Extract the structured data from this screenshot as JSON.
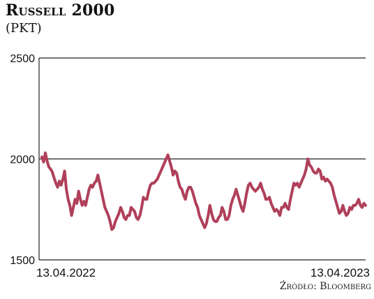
{
  "title": "Russell 2000",
  "unit": "(PKT)",
  "source": "Źródło: Bloomberg",
  "colors": {
    "line": "#b0405a",
    "grid": "#222222",
    "axis": "#222222"
  },
  "chart_data": {
    "type": "line",
    "title": "Russell 2000",
    "ylabel": "(PKT)",
    "ylim": [
      1500,
      2500
    ],
    "yticks": [
      1500,
      2000,
      2500
    ],
    "xtick_labels": [
      "13.04.2022",
      "13.04.2023"
    ],
    "grid": "horizontal",
    "x_range": [
      "2022-04-13",
      "2023-04-13"
    ],
    "series": [
      {
        "values": [
          2010,
          1985,
          2030,
          1990,
          1960,
          1950,
          1935,
          1905,
          1880,
          1860,
          1890,
          1870,
          1900,
          1940,
          1850,
          1800,
          1770,
          1720,
          1760,
          1800,
          1780,
          1840,
          1800,
          1770,
          1790,
          1770,
          1810,
          1850,
          1870,
          1860,
          1880,
          1890,
          1920,
          1880,
          1840,
          1800,
          1760,
          1740,
          1720,
          1690,
          1650,
          1660,
          1690,
          1710,
          1730,
          1760,
          1740,
          1710,
          1700,
          1720,
          1720,
          1760,
          1750,
          1740,
          1710,
          1700,
          1720,
          1760,
          1810,
          1800,
          1800,
          1840,
          1870,
          1880,
          1880,
          1890,
          1900,
          1920,
          1940,
          1960,
          1980,
          2000,
          2020,
          1990,
          1960,
          1920,
          1940,
          1930,
          1890,
          1860,
          1850,
          1820,
          1800,
          1840,
          1860,
          1860,
          1840,
          1810,
          1780,
          1760,
          1720,
          1700,
          1680,
          1660,
          1680,
          1720,
          1770,
          1730,
          1700,
          1690,
          1690,
          1710,
          1720,
          1760,
          1740,
          1700,
          1700,
          1720,
          1770,
          1800,
          1820,
          1850,
          1820,
          1790,
          1760,
          1740,
          1780,
          1830,
          1870,
          1880,
          1860,
          1850,
          1840,
          1850,
          1860,
          1880,
          1850,
          1830,
          1800,
          1800,
          1810,
          1780,
          1760,
          1740,
          1750,
          1740,
          1720,
          1760,
          1760,
          1780,
          1760,
          1750,
          1800,
          1840,
          1880,
          1870,
          1880,
          1860,
          1880,
          1900,
          1920,
          1950,
          2000,
          1970,
          1960,
          1940,
          1930,
          1930,
          1950,
          1940,
          1900,
          1910,
          1890,
          1900,
          1890,
          1880,
          1860,
          1820,
          1790,
          1760,
          1730,
          1740,
          1770,
          1740,
          1720,
          1730,
          1760,
          1750,
          1770,
          1770,
          1780,
          1800,
          1770,
          1760,
          1780,
          1770
        ]
      }
    ]
  }
}
